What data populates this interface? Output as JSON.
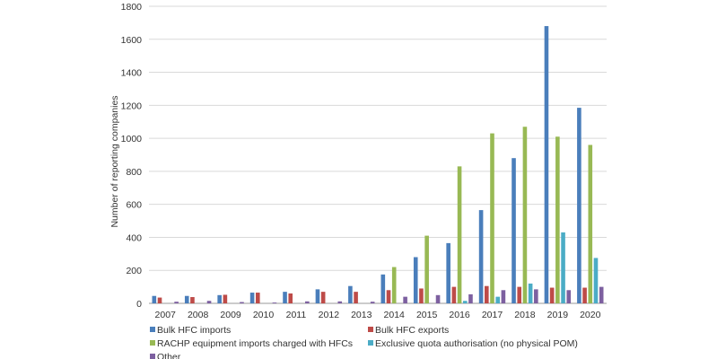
{
  "chart_data": {
    "type": "bar",
    "ylabel": "Number of reporting companies",
    "ylim": [
      0,
      1800
    ],
    "yticks": [
      0,
      200,
      400,
      600,
      800,
      1000,
      1200,
      1400,
      1600,
      1800
    ],
    "grid": true,
    "legend_position": "bottom",
    "categories": [
      "2007",
      "2008",
      "2009",
      "2010",
      "2011",
      "2012",
      "2013",
      "2014",
      "2015",
      "2016",
      "2017",
      "2018",
      "2019",
      "2020"
    ],
    "series": [
      {
        "name": "Bulk HFC imports",
        "color": "#4a7ebb",
        "values": [
          45,
          45,
          50,
          65,
          70,
          85,
          105,
          175,
          280,
          365,
          565,
          880,
          1680,
          1185
        ]
      },
      {
        "name": "Bulk HFC exports",
        "color": "#be4b48",
        "values": [
          35,
          38,
          52,
          65,
          60,
          70,
          70,
          80,
          90,
          100,
          105,
          100,
          95,
          95
        ]
      },
      {
        "name": "RACHP equipment imports charged with HFCs",
        "color": "#98b954",
        "values": [
          0,
          0,
          0,
          0,
          0,
          0,
          0,
          220,
          410,
          830,
          1030,
          1070,
          1010,
          960
        ]
      },
      {
        "name": "Exclusive quota authorisation (no physical POM)",
        "color": "#4bacc6",
        "values": [
          0,
          0,
          0,
          0,
          0,
          0,
          0,
          0,
          0,
          15,
          40,
          120,
          430,
          275
        ]
      },
      {
        "name": "Other",
        "color": "#7d60a0",
        "values": [
          10,
          15,
          8,
          5,
          12,
          12,
          10,
          40,
          50,
          55,
          80,
          85,
          80,
          100
        ]
      }
    ]
  }
}
